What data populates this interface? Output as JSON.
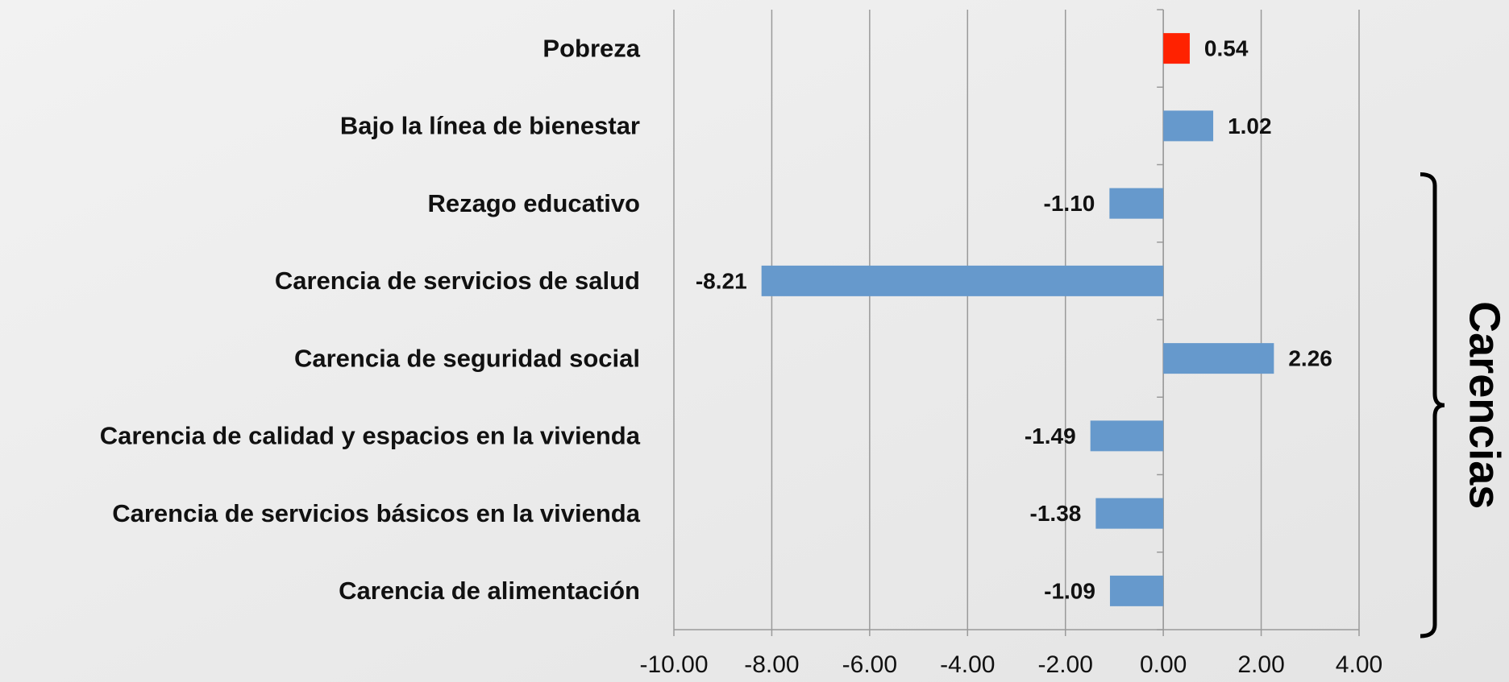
{
  "chart_data": {
    "type": "bar",
    "orientation": "horizontal",
    "categories": [
      "Pobreza",
      "Bajo la línea de bienestar",
      "Rezago educativo",
      "Carencia de servicios de salud",
      "Carencia de seguridad social",
      "Carencia de calidad y espacios en la vivienda",
      "Carencia de servicios básicos en la vivienda",
      "Carencia de alimentación"
    ],
    "values": [
      0.54,
      1.02,
      -1.1,
      -8.21,
      2.26,
      -1.49,
      -1.38,
      -1.09
    ],
    "value_labels": [
      "0.54",
      "1.02",
      "-1.10",
      "-8.21",
      "2.26",
      "-1.49",
      "-1.38",
      "-1.09"
    ],
    "colors": [
      "#ff2200",
      "#6699cc",
      "#6699cc",
      "#6699cc",
      "#6699cc",
      "#6699cc",
      "#6699cc",
      "#6699cc"
    ],
    "xlim": [
      -10,
      4
    ],
    "xticks": [
      {
        "value": -10,
        "label": "-10.00"
      },
      {
        "value": -8,
        "label": "-8.00"
      },
      {
        "value": -6,
        "label": "-6.00"
      },
      {
        "value": -4,
        "label": "-4.00"
      },
      {
        "value": -2,
        "label": "-2.00"
      },
      {
        "value": 0,
        "label": "0.00"
      },
      {
        "value": 2,
        "label": "2.00"
      },
      {
        "value": 4,
        "label": "4.00"
      }
    ],
    "grid": true,
    "annotations": [
      {
        "text": "Carencias",
        "from_category": 2,
        "to_category": 7
      }
    ]
  }
}
